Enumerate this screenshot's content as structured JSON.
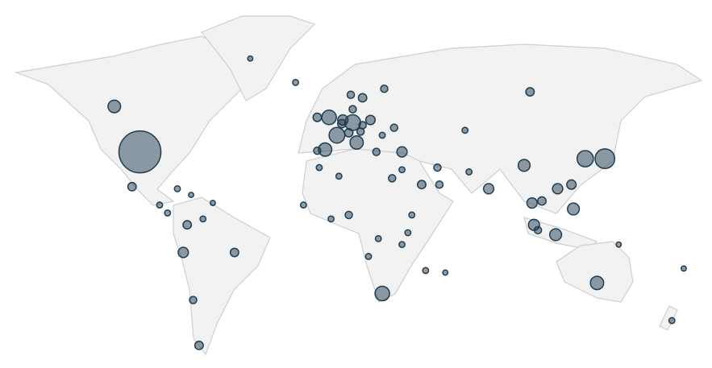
{
  "map": {
    "type": "bubble-map",
    "projection": "miller",
    "color": "#1f3d51",
    "bubbles": [
      {
        "lon": -98,
        "lat": 39,
        "value": 100
      },
      {
        "lon": -111,
        "lat": 57,
        "value": 9
      },
      {
        "lon": -42,
        "lat": 72,
        "value": 1.5
      },
      {
        "lon": -102,
        "lat": 23,
        "value": 4
      },
      {
        "lon": -19,
        "lat": 65,
        "value": 2
      },
      {
        "lon": -2,
        "lat": 53,
        "value": 12
      },
      {
        "lon": -8,
        "lat": 53,
        "value": 4
      },
      {
        "lon": 2,
        "lat": 46,
        "value": 14
      },
      {
        "lon": 10,
        "lat": 51,
        "value": 14
      },
      {
        "lon": -4,
        "lat": 40,
        "value": 10
      },
      {
        "lon": -8,
        "lat": 39.5,
        "value": 3
      },
      {
        "lon": 12,
        "lat": 43,
        "value": 10
      },
      {
        "lon": 5,
        "lat": 52,
        "value": 6
      },
      {
        "lon": 4.5,
        "lat": 50.6,
        "value": 4
      },
      {
        "lon": 8,
        "lat": 47,
        "value": 4
      },
      {
        "lon": 14,
        "lat": 47.5,
        "value": 3
      },
      {
        "lon": 19,
        "lat": 52,
        "value": 5
      },
      {
        "lon": 15,
        "lat": 60,
        "value": 4
      },
      {
        "lon": 9,
        "lat": 61,
        "value": 3
      },
      {
        "lon": 26,
        "lat": 63,
        "value": 3
      },
      {
        "lon": 10,
        "lat": 56,
        "value": 3
      },
      {
        "lon": 15,
        "lat": 50,
        "value": 3
      },
      {
        "lon": 22,
        "lat": 39,
        "value": 3
      },
      {
        "lon": 35,
        "lat": 39,
        "value": 6
      },
      {
        "lon": 100,
        "lat": 62,
        "value": 4
      },
      {
        "lon": 31,
        "lat": 49,
        "value": 3
      },
      {
        "lon": 25,
        "lat": 46,
        "value": 2
      },
      {
        "lon": 97,
        "lat": 33,
        "value": 8
      },
      {
        "lon": 138,
        "lat": 36,
        "value": 22
      },
      {
        "lon": 128,
        "lat": 36,
        "value": 15
      },
      {
        "lon": 79,
        "lat": 22,
        "value": 6
      },
      {
        "lon": 53,
        "lat": 32,
        "value": 3
      },
      {
        "lon": 45,
        "lat": 24,
        "value": 4
      },
      {
        "lon": 30,
        "lat": 27,
        "value": 3
      },
      {
        "lon": 35,
        "lat": 31,
        "value": 2
      },
      {
        "lon": 54,
        "lat": 24,
        "value": 3
      },
      {
        "lon": 69,
        "lat": 30,
        "value": 2
      },
      {
        "lon": 67,
        "lat": 48,
        "value": 2
      },
      {
        "lon": 101,
        "lat": 15,
        "value": 6
      },
      {
        "lon": 106,
        "lat": 16,
        "value": 4
      },
      {
        "lon": 102,
        "lat": 4,
        "value": 7
      },
      {
        "lon": 104,
        "lat": 1.3,
        "value": 3
      },
      {
        "lon": 113,
        "lat": -1,
        "value": 8
      },
      {
        "lon": 122,
        "lat": 12,
        "value": 8
      },
      {
        "lon": 121,
        "lat": 24,
        "value": 5
      },
      {
        "lon": 114,
        "lat": 22,
        "value": 6
      },
      {
        "lon": 134,
        "lat": -25,
        "value": 10
      },
      {
        "lon": 172,
        "lat": -42,
        "value": 2
      },
      {
        "lon": 178,
        "lat": -18,
        "value": 1.5
      },
      {
        "lon": 145,
        "lat": -6,
        "value": 1.5
      },
      {
        "lon": 25,
        "lat": -30,
        "value": 12
      },
      {
        "lon": 8,
        "lat": 9,
        "value": 3
      },
      {
        "lon": 38,
        "lat": 0,
        "value": 2
      },
      {
        "lon": 40,
        "lat": 9,
        "value": 2
      },
      {
        "lon": -7,
        "lat": 32,
        "value": 2
      },
      {
        "lon": 3,
        "lat": 28,
        "value": 2
      },
      {
        "lon": -15,
        "lat": 14,
        "value": 2
      },
      {
        "lon": -1,
        "lat": 7,
        "value": 2
      },
      {
        "lon": -50,
        "lat": -10,
        "value": 4
      },
      {
        "lon": -68,
        "lat": -52,
        "value": 4
      },
      {
        "lon": -74,
        "lat": 4,
        "value": 4
      },
      {
        "lon": -76,
        "lat": -10,
        "value": 6
      },
      {
        "lon": -71,
        "lat": -33,
        "value": 3
      },
      {
        "lon": -66,
        "lat": 7,
        "value": 2
      },
      {
        "lon": -79,
        "lat": 22,
        "value": 2
      },
      {
        "lon": -72,
        "lat": 19,
        "value": 1.5
      },
      {
        "lon": -61,
        "lat": 15,
        "value": 1.5
      },
      {
        "lon": -88,
        "lat": 14,
        "value": 2
      },
      {
        "lon": -84,
        "lat": 10,
        "value": 2
      },
      {
        "lon": 47,
        "lat": -19,
        "value": 2
      },
      {
        "lon": 18,
        "lat": -12,
        "value": 2
      },
      {
        "lon": 35,
        "lat": -6,
        "value": 2
      },
      {
        "lon": 23,
        "lat": -3,
        "value": 2
      },
      {
        "lon": 57,
        "lat": -20,
        "value": 1.5
      }
    ]
  }
}
